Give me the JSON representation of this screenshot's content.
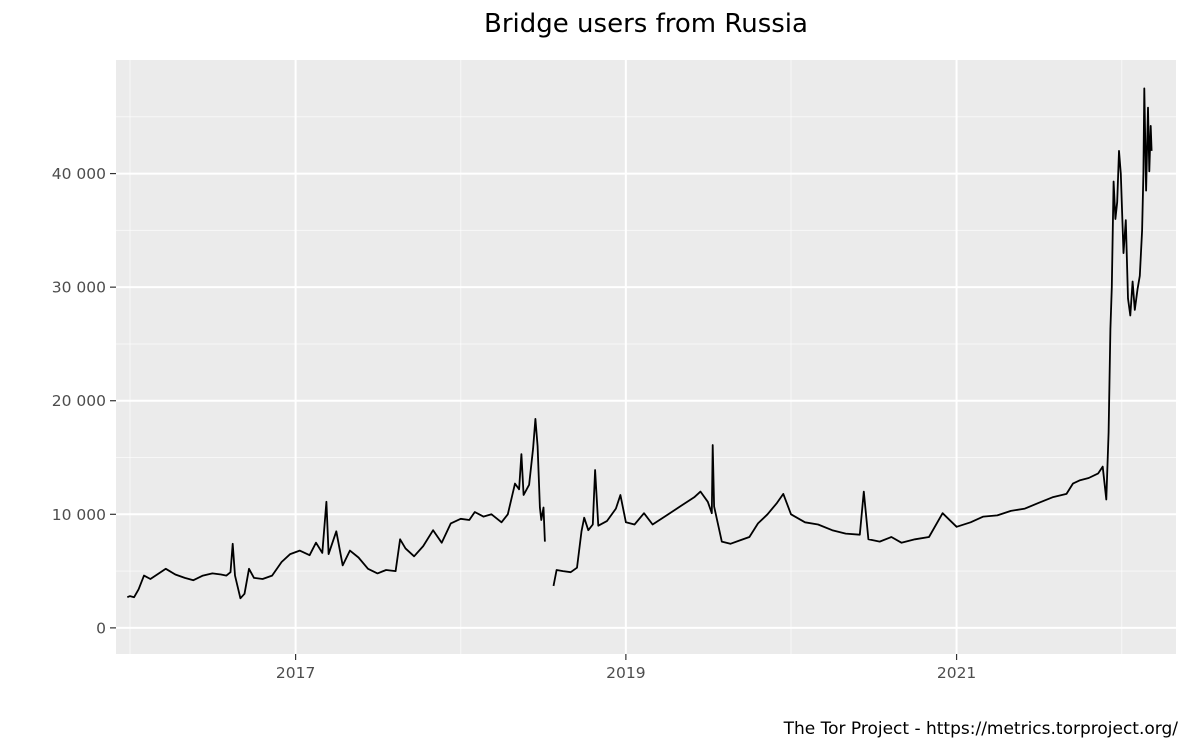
{
  "chart_data": {
    "type": "line",
    "title": "Bridge users from Russia",
    "caption": "The Tor Project - https://metrics.torproject.org/",
    "xlabel": "",
    "ylabel": "",
    "x_axis": {
      "kind": "date",
      "range": [
        "2015-12-01",
        "2022-05-01"
      ],
      "ticks": [
        {
          "value": "2017-01-01",
          "label": "2017"
        },
        {
          "value": "2019-01-01",
          "label": "2019"
        },
        {
          "value": "2021-01-01",
          "label": "2021"
        }
      ],
      "minor_gridlines": [
        "2016-01-01",
        "2018-01-01",
        "2020-01-01",
        "2022-01-01"
      ]
    },
    "y_axis": {
      "range": [
        -2300,
        50000
      ],
      "ticks": [
        {
          "value": 0,
          "label": "0"
        },
        {
          "value": 10000,
          "label": "10 000"
        },
        {
          "value": 20000,
          "label": "20 000"
        },
        {
          "value": 30000,
          "label": "30 000"
        },
        {
          "value": 40000,
          "label": "40 000"
        }
      ],
      "minor_gridlines": [
        5000,
        15000,
        25000,
        35000,
        45000
      ]
    },
    "grid": true,
    "background": "#ebebeb",
    "line_color": "#000000",
    "series": [
      {
        "segments": [
          [
            [
              "2015-12-26",
              2700
            ],
            [
              "2016-01-01",
              2800
            ],
            [
              "2016-01-10",
              2700
            ],
            [
              "2016-01-20",
              3400
            ],
            [
              "2016-02-01",
              4600
            ],
            [
              "2016-02-15",
              4300
            ],
            [
              "2016-03-01",
              4700
            ],
            [
              "2016-03-20",
              5200
            ],
            [
              "2016-04-10",
              4700
            ],
            [
              "2016-05-01",
              4400
            ],
            [
              "2016-05-20",
              4200
            ],
            [
              "2016-06-10",
              4600
            ],
            [
              "2016-07-01",
              4800
            ],
            [
              "2016-07-20",
              4700
            ],
            [
              "2016-08-01",
              4600
            ],
            [
              "2016-08-10",
              4900
            ],
            [
              "2016-08-15",
              7400
            ],
            [
              "2016-08-20",
              4600
            ],
            [
              "2016-09-01",
              2600
            ],
            [
              "2016-09-10",
              3000
            ],
            [
              "2016-09-20",
              5200
            ],
            [
              "2016-10-01",
              4400
            ],
            [
              "2016-10-20",
              4300
            ],
            [
              "2016-11-10",
              4600
            ],
            [
              "2016-12-01",
              5800
            ],
            [
              "2016-12-20",
              6500
            ],
            [
              "2017-01-10",
              6800
            ],
            [
              "2017-02-01",
              6400
            ],
            [
              "2017-02-15",
              7500
            ],
            [
              "2017-03-01",
              6600
            ],
            [
              "2017-03-10",
              11100
            ],
            [
              "2017-03-15",
              6500
            ],
            [
              "2017-04-01",
              8500
            ],
            [
              "2017-04-15",
              5500
            ],
            [
              "2017-05-01",
              6800
            ],
            [
              "2017-05-20",
              6200
            ],
            [
              "2017-06-10",
              5200
            ],
            [
              "2017-07-01",
              4800
            ],
            [
              "2017-07-20",
              5100
            ],
            [
              "2017-08-10",
              5000
            ],
            [
              "2017-08-20",
              7800
            ],
            [
              "2017-09-01",
              7000
            ],
            [
              "2017-09-20",
              6300
            ],
            [
              "2017-10-10",
              7200
            ],
            [
              "2017-11-01",
              8600
            ],
            [
              "2017-11-20",
              7500
            ],
            [
              "2017-12-10",
              9200
            ],
            [
              "2018-01-01",
              9600
            ],
            [
              "2018-01-20",
              9500
            ],
            [
              "2018-02-01",
              10200
            ],
            [
              "2018-02-20",
              9800
            ],
            [
              "2018-03-10",
              10000
            ],
            [
              "2018-04-01",
              9300
            ],
            [
              "2018-04-15",
              10000
            ],
            [
              "2018-05-01",
              12700
            ],
            [
              "2018-05-10",
              12200
            ],
            [
              "2018-05-15",
              15300
            ],
            [
              "2018-05-20",
              11700
            ],
            [
              "2018-06-01",
              12600
            ],
            [
              "2018-06-10",
              15800
            ],
            [
              "2018-06-15",
              18400
            ],
            [
              "2018-06-20",
              16000
            ],
            [
              "2018-06-25",
              10600
            ],
            [
              "2018-06-28",
              9500
            ],
            [
              "2018-07-03",
              10600
            ],
            [
              "2018-07-06",
              7600
            ]
          ],
          [
            [
              "2018-07-25",
              3700
            ],
            [
              "2018-08-01",
              5100
            ],
            [
              "2018-08-15",
              5000
            ],
            [
              "2018-09-01",
              4900
            ],
            [
              "2018-09-15",
              5300
            ],
            [
              "2018-09-25",
              8500
            ],
            [
              "2018-10-01",
              9700
            ],
            [
              "2018-10-10",
              8600
            ],
            [
              "2018-10-20",
              9100
            ],
            [
              "2018-10-25",
              13900
            ],
            [
              "2018-11-01",
              9000
            ],
            [
              "2018-11-20",
              9400
            ],
            [
              "2018-12-10",
              10500
            ],
            [
              "2018-12-20",
              11700
            ],
            [
              "2019-01-01",
              9300
            ],
            [
              "2019-01-20",
              9100
            ],
            [
              "2019-02-10",
              10100
            ],
            [
              "2019-03-01",
              9100
            ],
            [
              "2019-04-01",
              9900
            ],
            [
              "2019-05-01",
              10700
            ],
            [
              "2019-06-01",
              11500
            ],
            [
              "2019-06-15",
              12000
            ],
            [
              "2019-07-01",
              11100
            ],
            [
              "2019-07-10",
              10100
            ],
            [
              "2019-07-12",
              16100
            ],
            [
              "2019-07-15",
              10700
            ],
            [
              "2019-08-01",
              7600
            ],
            [
              "2019-08-20",
              7400
            ],
            [
              "2019-09-10",
              7700
            ],
            [
              "2019-10-01",
              8000
            ],
            [
              "2019-10-20",
              9200
            ],
            [
              "2019-11-10",
              10000
            ],
            [
              "2019-12-01",
              11000
            ],
            [
              "2019-12-15",
              11800
            ],
            [
              "2020-01-01",
              10000
            ],
            [
              "2020-02-01",
              9300
            ],
            [
              "2020-03-01",
              9100
            ],
            [
              "2020-04-01",
              8600
            ],
            [
              "2020-05-01",
              8300
            ],
            [
              "2020-06-01",
              8200
            ],
            [
              "2020-06-10",
              12000
            ],
            [
              "2020-06-20",
              7800
            ],
            [
              "2020-07-15",
              7600
            ],
            [
              "2020-08-10",
              8000
            ],
            [
              "2020-09-01",
              7500
            ],
            [
              "2020-10-01",
              7800
            ],
            [
              "2020-11-01",
              8000
            ],
            [
              "2020-12-01",
              10100
            ],
            [
              "2021-01-01",
              8900
            ],
            [
              "2021-02-01",
              9300
            ],
            [
              "2021-03-01",
              9800
            ],
            [
              "2021-04-01",
              9900
            ],
            [
              "2021-05-01",
              10300
            ],
            [
              "2021-06-01",
              10500
            ],
            [
              "2021-07-01",
              11000
            ],
            [
              "2021-08-01",
              11500
            ],
            [
              "2021-09-01",
              11800
            ],
            [
              "2021-09-15",
              12700
            ],
            [
              "2021-10-01",
              13000
            ],
            [
              "2021-10-20",
              13200
            ],
            [
              "2021-11-10",
              13600
            ],
            [
              "2021-11-20",
              14200
            ],
            [
              "2021-11-28",
              11300
            ],
            [
              "2021-12-03",
              17200
            ],
            [
              "2021-12-07",
              26300
            ],
            [
              "2021-12-10",
              30000
            ],
            [
              "2021-12-14",
              39300
            ],
            [
              "2021-12-18",
              36000
            ],
            [
              "2021-12-22",
              37500
            ],
            [
              "2021-12-26",
              42000
            ],
            [
              "2021-12-30",
              40000
            ],
            [
              "2022-01-05",
              33000
            ],
            [
              "2022-01-10",
              35900
            ],
            [
              "2022-01-15",
              29000
            ],
            [
              "2022-01-20",
              27500
            ],
            [
              "2022-01-25",
              30500
            ],
            [
              "2022-01-30",
              28000
            ],
            [
              "2022-02-05",
              29800
            ],
            [
              "2022-02-10",
              31000
            ],
            [
              "2022-02-15",
              35000
            ],
            [
              "2022-02-18",
              40000
            ],
            [
              "2022-02-20",
              47500
            ],
            [
              "2022-02-24",
              38500
            ],
            [
              "2022-02-28",
              45800
            ],
            [
              "2022-03-03",
              40200
            ],
            [
              "2022-03-06",
              44200
            ],
            [
              "2022-03-08",
              42000
            ]
          ]
        ]
      }
    ]
  }
}
